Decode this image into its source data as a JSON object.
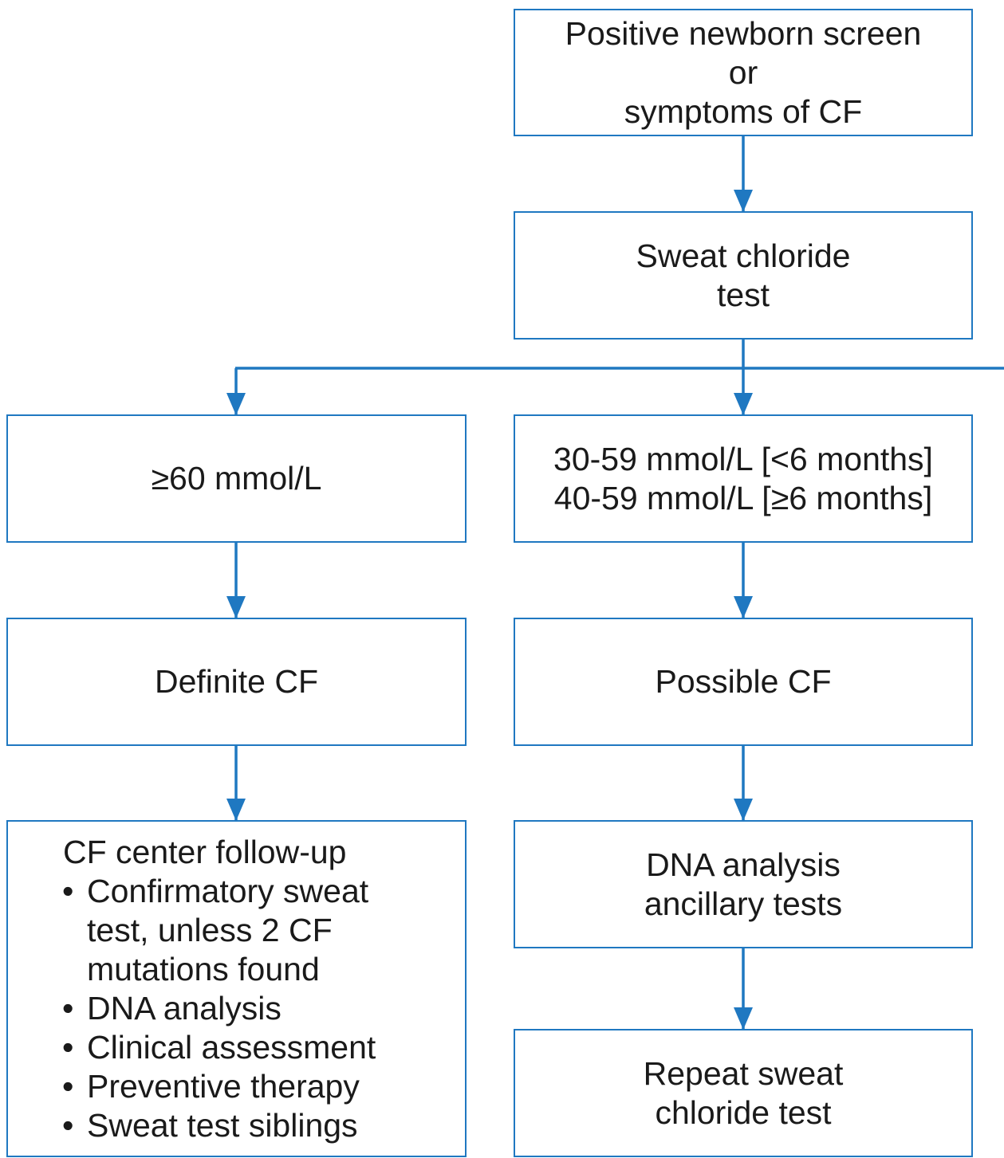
{
  "colors": {
    "line": "#1f78c1",
    "text": "#1a1a1a",
    "background": "#ffffff"
  },
  "nodes": {
    "start": {
      "lines": [
        "Positive newborn screen",
        "or",
        "symptoms of CF"
      ]
    },
    "sweat_test": {
      "lines": [
        "Sweat chloride",
        "test"
      ]
    },
    "high_result": {
      "lines": [
        "≥60 mmol/L"
      ]
    },
    "intermediate_result": {
      "lines": [
        "30-59 mmol/L [<6 months]",
        "40-59 mmol/L [≥6 months]"
      ]
    },
    "definite_cf": {
      "lines": [
        "Definite CF"
      ]
    },
    "possible_cf": {
      "lines": [
        "Possible CF"
      ]
    },
    "dna_analysis": {
      "lines": [
        "DNA analysis",
        "ancillary tests"
      ]
    },
    "repeat_sweat": {
      "lines": [
        "Repeat sweat",
        "chloride test"
      ]
    },
    "cf_center": {
      "heading": "CF center follow-up",
      "bullets": [
        [
          "Confirmatory sweat",
          "test, unless 2 CF",
          "mutations found"
        ],
        [
          "DNA analysis"
        ],
        [
          "Clinical assessment"
        ],
        [
          "Preventive therapy"
        ],
        [
          "Sweat test siblings"
        ]
      ]
    }
  }
}
